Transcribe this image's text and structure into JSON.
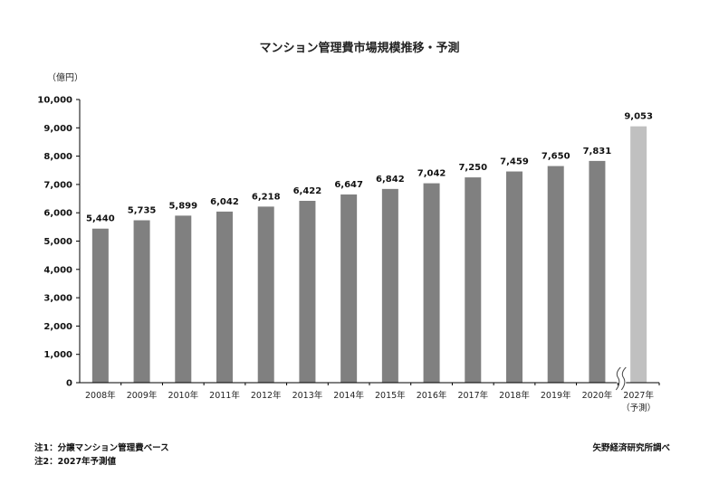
{
  "chart_data": {
    "type": "bar",
    "title": "マンション管理費市場規模推移・予測",
    "unit_label": "（億円）",
    "categories": [
      "2008年",
      "2009年",
      "2010年",
      "2011年",
      "2012年",
      "2013年",
      "2014年",
      "2015年",
      "2016年",
      "2017年",
      "2018年",
      "2019年",
      "2020年",
      "2027年"
    ],
    "category_notes": [
      "",
      "",
      "",
      "",
      "",
      "",
      "",
      "",
      "",
      "",
      "",
      "",
      "",
      "（予測）"
    ],
    "values": [
      5440,
      5735,
      5899,
      6042,
      6218,
      6422,
      6647,
      6842,
      7042,
      7250,
      7459,
      7650,
      7831,
      9053
    ],
    "value_labels": [
      "5,440",
      "5,735",
      "5,899",
      "6,042",
      "6,218",
      "6,422",
      "6,647",
      "6,842",
      "7,042",
      "7,250",
      "7,459",
      "7,650",
      "7,831",
      "9,053"
    ],
    "forecast": [
      false,
      false,
      false,
      false,
      false,
      false,
      false,
      false,
      false,
      false,
      false,
      false,
      false,
      true
    ],
    "ylim": [
      0,
      10000
    ],
    "yticks": [
      0,
      1000,
      2000,
      3000,
      4000,
      5000,
      6000,
      7000,
      8000,
      9000,
      10000
    ],
    "ytick_labels": [
      "0",
      "1,000",
      "2,000",
      "3,000",
      "4,000",
      "5,000",
      "6,000",
      "7,000",
      "8,000",
      "9,000",
      "10,000"
    ],
    "axis_break": "before-last",
    "grid": false,
    "colors": {
      "actual": "#808080",
      "forecast": "#c0c0c0"
    }
  },
  "notes": [
    "注1：分譲マンション管理費ベース",
    "注2：2027年予測値"
  ],
  "source": "矢野経済研究所調べ"
}
